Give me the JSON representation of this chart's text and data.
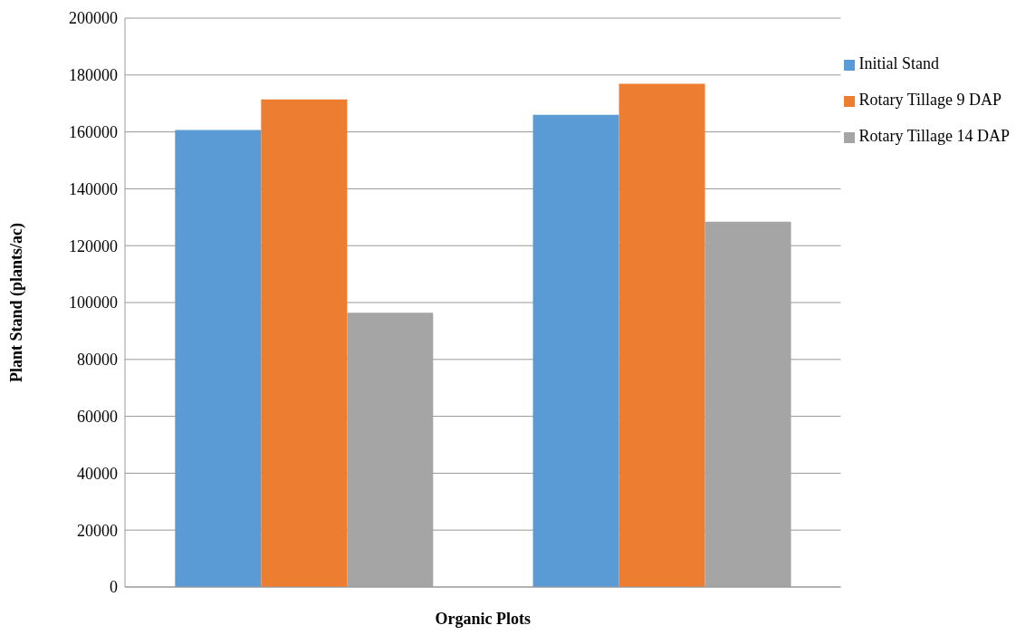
{
  "chart_data": {
    "type": "bar",
    "xlabel": "Organic Plots",
    "ylabel": "Plant Stand (plants/ac)",
    "categories": [
      null,
      null
    ],
    "series": [
      {
        "name": "Initial Stand",
        "color": "#5b9bd5",
        "values": [
          160700,
          166000
        ]
      },
      {
        "name": "Rotary Tillage 9 DAP",
        "color": "#ed7d31",
        "values": [
          171400,
          176900
        ]
      },
      {
        "name": "Rotary Tillage 14 DAP",
        "color": "#a5a5a5",
        "values": [
          96400,
          128400
        ]
      }
    ],
    "ylim": [
      0,
      200000
    ],
    "yticks": [
      0,
      20000,
      40000,
      60000,
      80000,
      100000,
      120000,
      140000,
      160000,
      180000,
      200000
    ],
    "grid": "y",
    "legend": "right"
  }
}
